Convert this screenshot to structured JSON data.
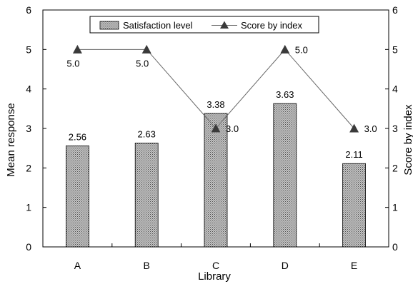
{
  "chart_data": {
    "type": "bar",
    "categories": [
      "A",
      "B",
      "C",
      "D",
      "E"
    ],
    "xlabel": "Library",
    "ylabel": "Mean response",
    "y2label": "Score by index",
    "ylim": [
      0,
      6
    ],
    "y2lim": [
      0,
      6
    ],
    "yticks": [
      "0",
      "1",
      "2",
      "3",
      "4",
      "5",
      "6"
    ],
    "y2ticks": [
      "0",
      "1",
      "2",
      "3",
      "4",
      "5",
      "6"
    ],
    "grid": false,
    "legend_position": "top-center",
    "series": [
      {
        "name": "Satisfaction level",
        "kind": "bar",
        "axis": "left",
        "values": [
          2.56,
          2.63,
          3.38,
          3.63,
          2.11
        ],
        "labels": [
          "2.56",
          "2.63",
          "3.38",
          "3.63",
          "2.11"
        ]
      },
      {
        "name": "Score by index",
        "kind": "line",
        "marker": "triangle",
        "axis": "right",
        "values": [
          5.0,
          5.0,
          3.0,
          5.0,
          3.0
        ],
        "labels": [
          "5.0",
          "5.0",
          "3.0",
          "5.0",
          "3.0"
        ]
      }
    ],
    "colors": {
      "bar_fill": "#bdbdbd",
      "bar_pattern": "#4a4a4a",
      "line": "#666666",
      "marker": "#3a3a3a",
      "axis": "#000000"
    }
  }
}
